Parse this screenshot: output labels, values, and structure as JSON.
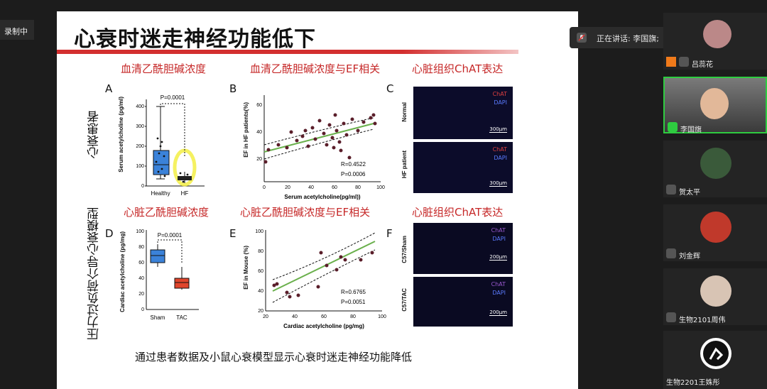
{
  "recording_label": "录制中",
  "speaker": {
    "prefix": "正在讲话:",
    "name": "李国旗;"
  },
  "slide": {
    "title": "心衰时迷走神经功能低下",
    "row1_label": "心衰患者",
    "row2_label": "压力过负荷介导心衰模型",
    "sections": [
      "血清乙酰胆碱浓度",
      "血清乙酰胆碱浓度与EF相关",
      "心脏组织ChAT表达",
      "心脏乙酰胆碱浓度",
      "心脏乙酰胆碱浓度与EF相关",
      "心脏组织ChAT表达"
    ],
    "letters": [
      "A",
      "B",
      "C",
      "D",
      "E",
      "F"
    ],
    "bottom_note": "通过患者数据及小鼠心衰模型显示心衰时迷走神经功能降低"
  },
  "panelA": {
    "ylabel": "Serum acetylcholine (pg/ml)",
    "yticks": [
      "0",
      "100",
      "200",
      "300",
      "400"
    ],
    "categories": [
      "Healthy",
      "HF"
    ],
    "pvalue": "P=0.0001",
    "box_colors": [
      "#3b82d9",
      "#222222"
    ]
  },
  "panelB": {
    "ylabel": "EF in HF patients(%)",
    "xlabel": "Serum acetylcholine(pg/ml))",
    "xticks": [
      "0",
      "20",
      "40",
      "60",
      "80",
      "100"
    ],
    "yticks": [
      "20",
      "40",
      "60"
    ],
    "r": "R=0.4522",
    "p": "P=0.0006"
  },
  "panelC": {
    "row_labels": [
      "Normal",
      "HF patient"
    ],
    "stains": [
      "ChAT",
      "DAPI"
    ],
    "scale": "300μm"
  },
  "panelD": {
    "ylabel": "Cardiac acetylcholine (pg/mg)",
    "yticks": [
      "0",
      "20",
      "40",
      "60",
      "80",
      "100"
    ],
    "categories": [
      "Sham",
      "TAC"
    ],
    "pvalue": "P=0.0001",
    "box_colors": [
      "#3b82d9",
      "#e0452c"
    ]
  },
  "panelE": {
    "ylabel": "EF in Mouse (%)",
    "xlabel": "Cardiac acetylcholine (pg/mg)",
    "xticks": [
      "20",
      "40",
      "60",
      "80",
      "100"
    ],
    "yticks": [
      "20",
      "40",
      "60",
      "80",
      "100"
    ],
    "r": "R=0.6765",
    "p": "P=0.0051"
  },
  "panelF": {
    "row_labels": [
      "C57/Sham",
      "C57/TAC"
    ],
    "stains": [
      "ChAT",
      "DAPI"
    ],
    "scale": "200μm"
  },
  "participants": [
    {
      "name": "吕蕊花",
      "status": "muted"
    },
    {
      "name": "李国旗",
      "status": "speaking"
    },
    {
      "name": "贺太平",
      "status": "muted"
    },
    {
      "name": "刘金辉",
      "status": "muted"
    },
    {
      "name": "生物2101周伟",
      "status": "muted"
    },
    {
      "name": "生物2201王姝彤",
      "status": "muted"
    }
  ]
}
